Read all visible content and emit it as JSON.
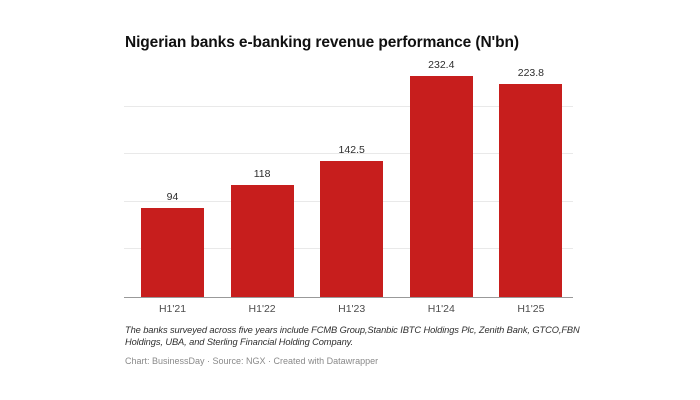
{
  "chart_data": {
    "type": "bar",
    "title": "Nigerian banks e-banking revenue performance (N'bn)",
    "categories": [
      "H1'21",
      "H1'22",
      "H1'23",
      "H1'24",
      "H1'25"
    ],
    "values": [
      94,
      118,
      142.5,
      232.4,
      223.8
    ],
    "xlabel": "",
    "ylabel": "",
    "ylim": [
      0,
      249
    ],
    "gridline_values": [
      50,
      100,
      150,
      200
    ],
    "grid": "horizontal",
    "legend_position": "none",
    "value_labels_shown": true,
    "bar_color": "#c71e1d",
    "axis_line_color": "#999999",
    "background_color": "#ffffff"
  },
  "notes": {
    "footnote": "The banks surveyed across five years include FCMB Group,Stanbic IBTC Holdings Plc, Zenith Bank, GTCO,FBN Holdings, UBA, and Sterling Financial Holding Company.",
    "credit": "Chart: BusinessDay · Source: NGX · Created with Datawrapper"
  }
}
